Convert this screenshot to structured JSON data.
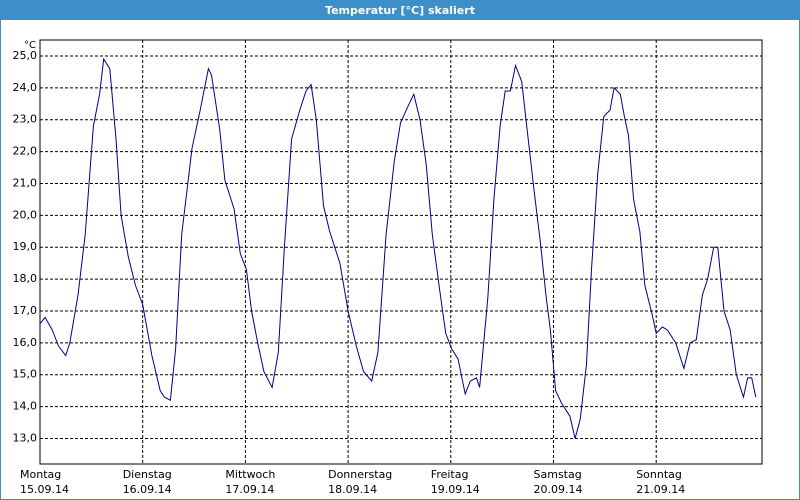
{
  "chart_data": {
    "type": "line",
    "title": "Temperatur [°C] skaliert",
    "y_unit": "°C",
    "x": [
      0,
      0.05,
      0.12,
      0.18,
      0.25,
      0.29,
      0.37,
      0.44,
      0.52,
      0.58,
      0.62,
      0.68,
      0.74,
      0.79,
      0.86,
      0.93,
      1.0,
      1.09,
      1.17,
      1.21,
      1.27,
      1.32,
      1.38,
      1.48,
      1.56,
      1.64,
      1.67,
      1.75,
      1.8,
      1.89,
      1.95,
      2.01,
      2.06,
      2.12,
      2.18,
      2.26,
      2.32,
      2.38,
      2.45,
      2.53,
      2.59,
      2.64,
      2.69,
      2.76,
      2.82,
      2.92,
      3.0,
      3.08,
      3.15,
      3.23,
      3.29,
      3.37,
      3.45,
      3.51,
      3.58,
      3.64,
      3.7,
      3.76,
      3.82,
      3.89,
      3.95,
      4.01,
      4.07,
      4.14,
      4.19,
      4.25,
      4.28,
      4.36,
      4.42,
      4.48,
      4.53,
      4.58,
      4.63,
      4.69,
      4.75,
      4.81,
      4.87,
      4.93,
      4.97,
      5.02,
      5.08,
      5.16,
      5.21,
      5.26,
      5.32,
      5.37,
      5.43,
      5.49,
      5.55,
      5.59,
      5.65,
      5.69,
      5.73,
      5.78,
      5.84,
      5.89,
      5.96,
      6.0,
      6.06,
      6.11,
      6.19,
      6.27,
      6.33,
      6.39,
      6.45,
      6.5,
      6.56,
      6.6,
      6.66,
      6.72,
      6.78,
      6.85,
      6.89,
      6.93,
      6.97
    ],
    "series": [
      {
        "name": "Temperatur",
        "color": "#00008b",
        "values": [
          16.6,
          16.8,
          16.4,
          15.9,
          15.6,
          16,
          17.5,
          19.4,
          22.8,
          23.8,
          24.9,
          24.6,
          22.4,
          20,
          18.7,
          17.8,
          17.2,
          15.6,
          14.5,
          14.3,
          14.2,
          15.8,
          19.4,
          22.1,
          23.3,
          24.6,
          24.4,
          22.7,
          21.1,
          20.2,
          18.8,
          18.3,
          17,
          16,
          15.1,
          14.6,
          15.7,
          19,
          22.4,
          23.3,
          23.9,
          24.1,
          23,
          20.3,
          19.5,
          18.5,
          17,
          15.9,
          15.1,
          14.8,
          15.7,
          19.4,
          21.7,
          22.9,
          23.4,
          23.8,
          23,
          21.6,
          19.4,
          17.7,
          16.3,
          15.8,
          15.5,
          14.4,
          14.8,
          14.9,
          14.6,
          17.4,
          20.5,
          22.8,
          23.9,
          23.9,
          24.7,
          24.2,
          22.5,
          20.8,
          19.2,
          17.4,
          16.4,
          14.5,
          14.1,
          13.7,
          13,
          13.6,
          15.3,
          18.3,
          21.3,
          23.1,
          23.3,
          24,
          23.8,
          23.1,
          22.5,
          20.5,
          19.5,
          17.8,
          16.9,
          16.3,
          16.5,
          16.4,
          16,
          15.2,
          16,
          16.1,
          17.5,
          18,
          19,
          19,
          17,
          16.4,
          15,
          14.3,
          14.9,
          14.9,
          14.3
        ]
      }
    ],
    "xlim": [
      0,
      7.03
    ],
    "xticks": [
      {
        "value": 0,
        "label": "Montag"
      },
      {
        "value": 1,
        "label": "Dienstag"
      },
      {
        "value": 2,
        "label": "Mittwoch"
      },
      {
        "value": 3,
        "label": "Donnerstag"
      },
      {
        "value": 4,
        "label": "Freitag"
      },
      {
        "value": 5,
        "label": "Samstag"
      },
      {
        "value": 6,
        "label": "Sonntag"
      }
    ],
    "xtick_dates": [
      "15.09.14",
      "16.09.14",
      "17.09.14",
      "18.09.14",
      "19.09.14",
      "20.09.14",
      "21.09.14"
    ],
    "ylim": [
      12.2,
      25.5
    ],
    "yticks": [
      {
        "value": 13,
        "label": "13,0"
      },
      {
        "value": 14,
        "label": "14,0"
      },
      {
        "value": 15,
        "label": "15,0"
      },
      {
        "value": 16,
        "label": "16,0"
      },
      {
        "value": 17,
        "label": "17,0"
      },
      {
        "value": 18,
        "label": "18,0"
      },
      {
        "value": 19,
        "label": "19,0"
      },
      {
        "value": 20,
        "label": "20,0"
      },
      {
        "value": 21,
        "label": "21,0"
      },
      {
        "value": 22,
        "label": "22,0"
      },
      {
        "value": 23,
        "label": "23,0"
      },
      {
        "value": 24,
        "label": "24,0"
      },
      {
        "value": 25,
        "label": "25,0"
      }
    ],
    "grid": true
  }
}
